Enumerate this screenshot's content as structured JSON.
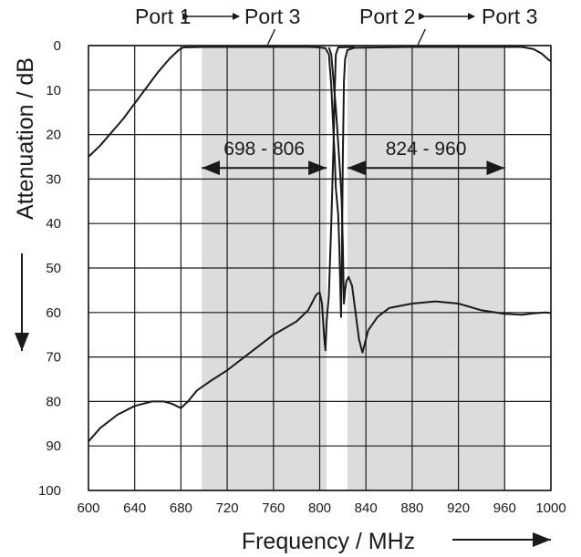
{
  "chart_data": {
    "type": "line",
    "title": "",
    "xlabel": "Frequency / MHz",
    "ylabel": "Attenuation / dB",
    "xlim": [
      600,
      1000
    ],
    "ylim": [
      0,
      100
    ],
    "y_inverted": true,
    "grid": true,
    "xticks": [
      600,
      640,
      680,
      720,
      760,
      800,
      840,
      880,
      920,
      960,
      1000
    ],
    "yticks": [
      0,
      10,
      20,
      30,
      40,
      50,
      60,
      70,
      80,
      90,
      100
    ],
    "shaded_bands": [
      {
        "from": 698,
        "to": 806,
        "label": "698 - 806",
        "arrow_y": 27.5
      },
      {
        "from": 824,
        "to": 960,
        "label": "824 - 960",
        "arrow_y": 27.5
      }
    ],
    "port_labels": [
      {
        "left": "Port 1",
        "right": "Port 3",
        "points_to_x": 755
      },
      {
        "left": "Port 2",
        "right": "Port 3",
        "points_to_x": 885
      }
    ],
    "series": [
      {
        "points": [
          [
            600,
            25
          ],
          [
            610,
            22.5
          ],
          [
            620,
            19.5
          ],
          [
            630,
            16.5
          ],
          [
            640,
            13
          ],
          [
            650,
            9.5
          ],
          [
            660,
            6
          ],
          [
            670,
            3
          ],
          [
            678,
            1
          ],
          [
            682,
            0.4
          ],
          [
            700,
            0.3
          ],
          [
            760,
            0.3
          ],
          [
            790,
            0.3
          ],
          [
            800,
            0.4
          ],
          [
            805,
            0.6
          ],
          [
            808,
            2
          ],
          [
            810,
            9
          ],
          [
            812,
            20
          ],
          [
            813,
            25
          ],
          [
            814,
            32
          ],
          [
            816,
            38
          ],
          [
            817,
            45
          ],
          [
            818,
            56
          ],
          [
            818.5,
            61
          ],
          [
            819,
            52
          ],
          [
            820,
            25
          ],
          [
            821,
            8
          ],
          [
            822,
            3
          ],
          [
            824,
            1
          ],
          [
            830,
            0.5
          ],
          [
            880,
            0.3
          ],
          [
            920,
            0.3
          ],
          [
            960,
            0.3
          ],
          [
            975,
            0.3
          ],
          [
            985,
            0.8
          ],
          [
            992,
            1.8
          ],
          [
            998,
            3.2
          ],
          [
            1000,
            3.5
          ]
        ]
      },
      {
        "points": [
          [
            600,
            89
          ],
          [
            610,
            86
          ],
          [
            625,
            83
          ],
          [
            640,
            81
          ],
          [
            655,
            80
          ],
          [
            665,
            80
          ],
          [
            672,
            80.5
          ],
          [
            680,
            81.5
          ],
          [
            686,
            80
          ],
          [
            694,
            77.5
          ],
          [
            705,
            75.5
          ],
          [
            720,
            73
          ],
          [
            740,
            69
          ],
          [
            760,
            65
          ],
          [
            780,
            62
          ],
          [
            790,
            59.5
          ],
          [
            797,
            56
          ],
          [
            800,
            55.5
          ],
          [
            802,
            58
          ],
          [
            804,
            66
          ],
          [
            805,
            68.5
          ],
          [
            806,
            62
          ],
          [
            808,
            56
          ],
          [
            810,
            40
          ],
          [
            812,
            22
          ],
          [
            813,
            10
          ],
          [
            814,
            2
          ],
          [
            816,
            0.4
          ],
          [
            830,
            0.3
          ]
        ]
      },
      {
        "points": [
          [
            808,
            0.4
          ],
          [
            810,
            2
          ],
          [
            812,
            8
          ],
          [
            814,
            14
          ],
          [
            816,
            22
          ],
          [
            818,
            30
          ],
          [
            819,
            35
          ],
          [
            820,
            45
          ],
          [
            821,
            58
          ],
          [
            822,
            55
          ],
          [
            823,
            53
          ],
          [
            825,
            52
          ],
          [
            828,
            54
          ],
          [
            831,
            60
          ],
          [
            834,
            66
          ],
          [
            836,
            68
          ],
          [
            837,
            69
          ],
          [
            838,
            68
          ],
          [
            842,
            64
          ],
          [
            850,
            61
          ],
          [
            860,
            59
          ],
          [
            880,
            58
          ],
          [
            900,
            57.5
          ],
          [
            920,
            58
          ],
          [
            940,
            59.5
          ],
          [
            960,
            60.3
          ],
          [
            975,
            60.5
          ],
          [
            985,
            60.2
          ],
          [
            995,
            60
          ],
          [
            1000,
            60.1
          ]
        ]
      }
    ]
  }
}
